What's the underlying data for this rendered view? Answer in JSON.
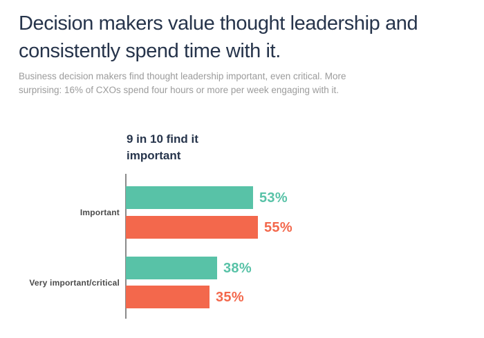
{
  "header": {
    "title": "Decision makers value thought leadership and consistently spend time with it.",
    "title_lines": [
      "Decision makers value thought leadership and",
      "consistently spend time with it."
    ],
    "subtitle": "Business decision makers find thought leadership important, even critical. More surprising: 16% of CXOs spend four hours or more per week engaging with it.",
    "subtitle_lines": [
      "Business decision makers find thought leadership important, even critical. More",
      "surprising: 16% of CXOs spend four hours or more per week engaging with it."
    ]
  },
  "chart_data": {
    "type": "bar",
    "orientation": "horizontal",
    "title": "9 in 10 find it important",
    "title_lines": [
      "9 in 10 find it",
      "important"
    ],
    "categories": [
      "Important",
      "Very important/critical"
    ],
    "series": [
      {
        "color": "#58C2A7",
        "values": [
          53,
          38
        ]
      },
      {
        "color": "#F3684C",
        "values": [
          55,
          35
        ]
      }
    ],
    "value_suffix": "%",
    "value_labels": [
      "53%",
      "55%",
      "38%",
      "35%"
    ],
    "xlim": [
      0,
      100
    ],
    "grid": "off",
    "legend": "none",
    "axis_color": "#8A8A8A",
    "category_label_color": "#4A4A4A"
  },
  "colors": {
    "title": "#26344B",
    "subtitle": "#9B9B9B",
    "background": "#FFFFFF"
  }
}
